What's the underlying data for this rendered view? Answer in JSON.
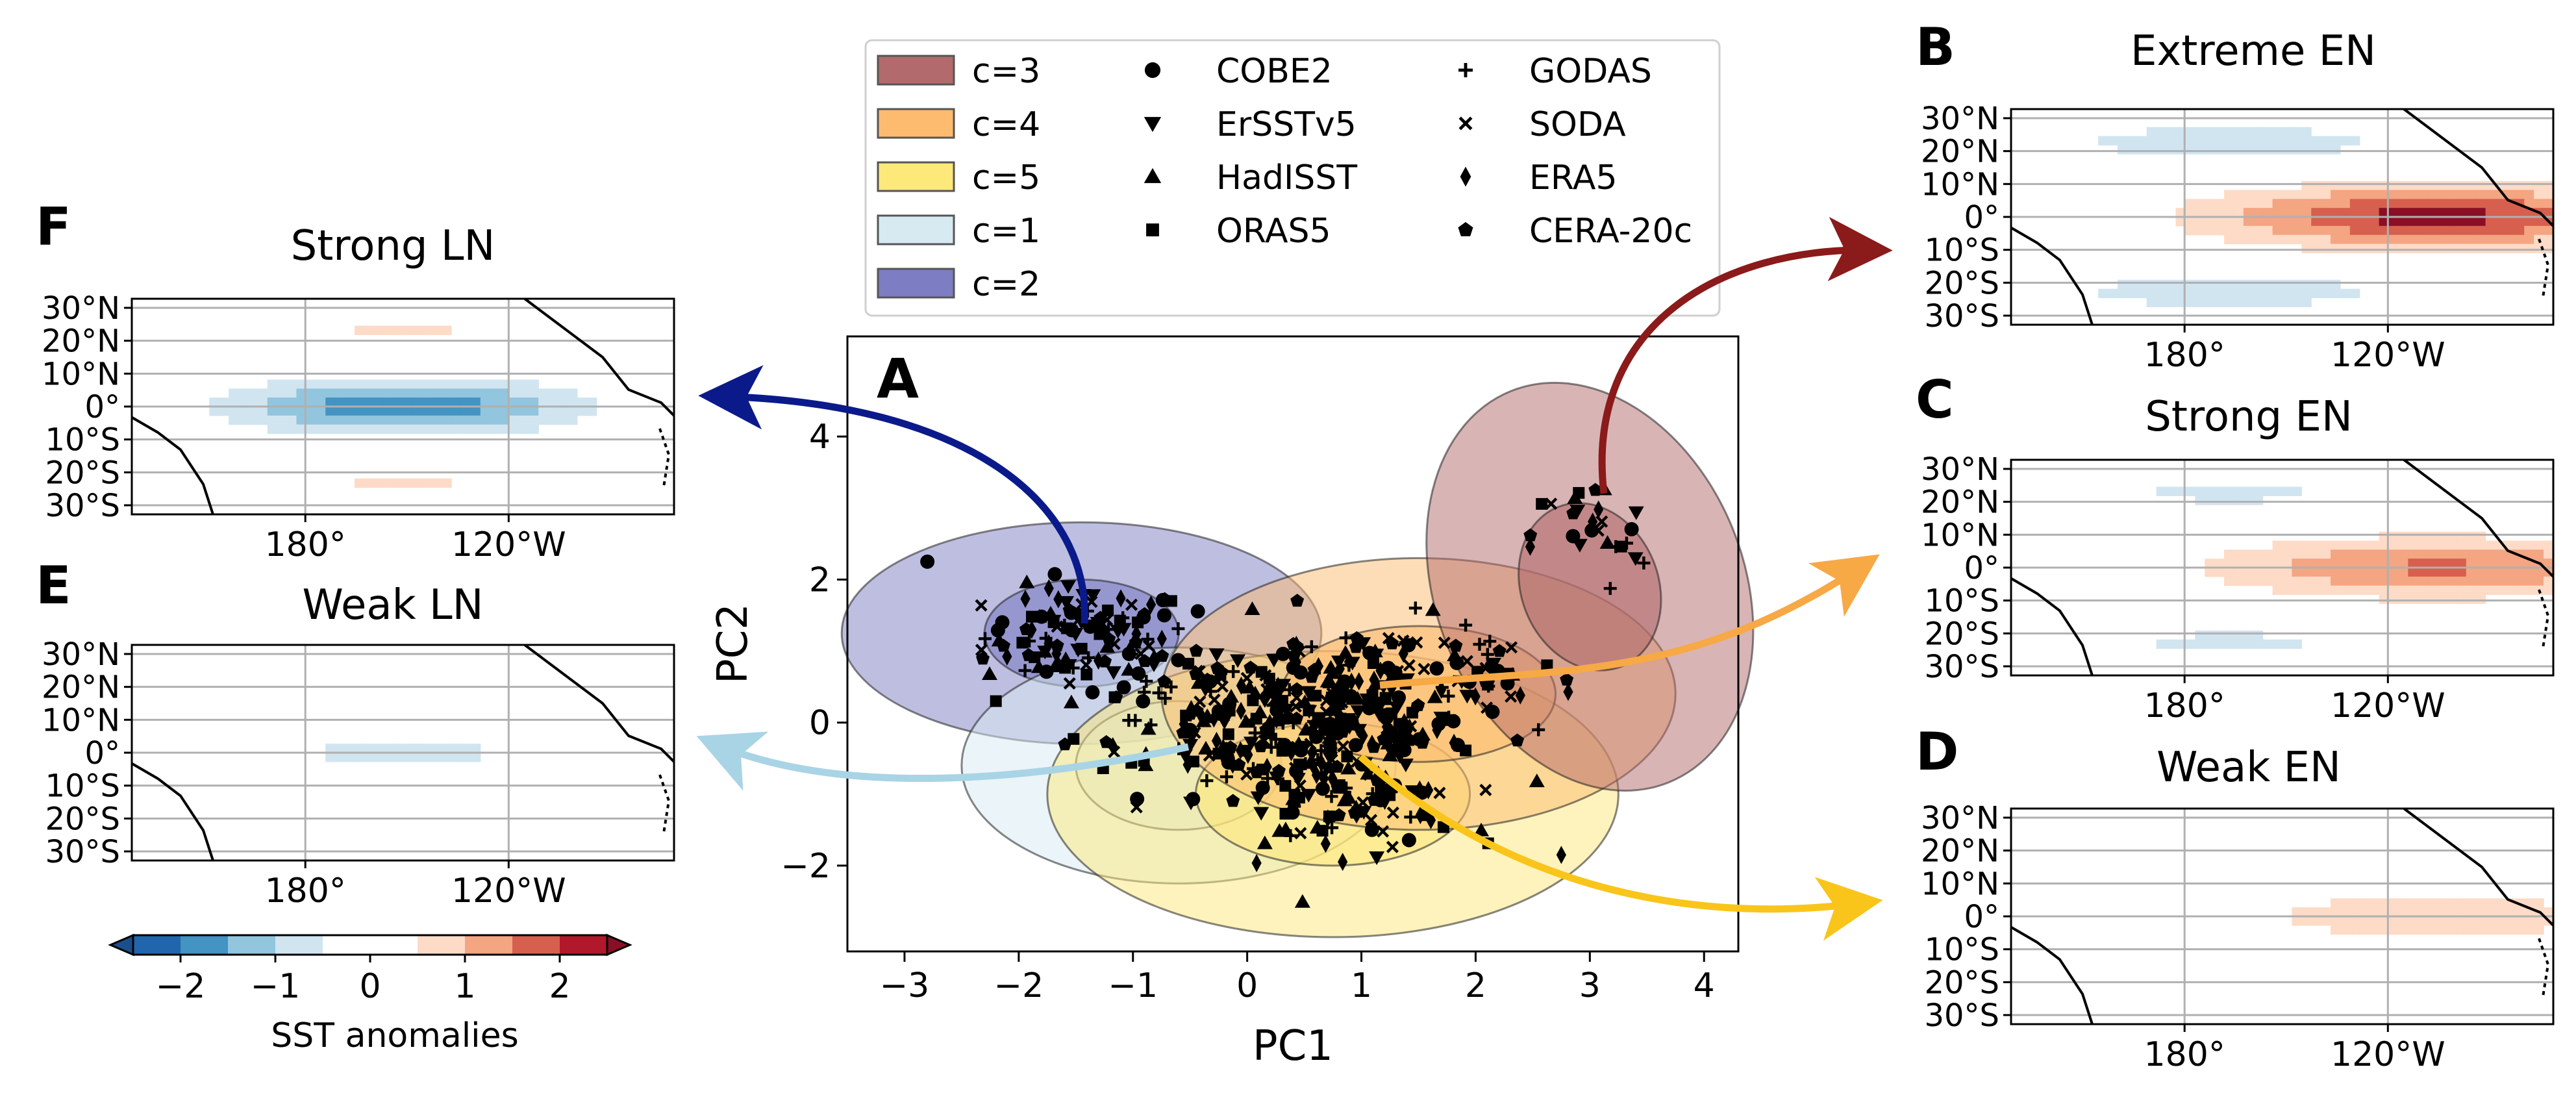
{
  "main_plot": {
    "panel_label": "A",
    "xlabel": "PC1",
    "ylabel": "PC2",
    "xticks": [
      "−3",
      "−2",
      "−1",
      "0",
      "1",
      "2",
      "3",
      "4"
    ],
    "yticks": [
      "−2",
      "0",
      "2",
      "4"
    ]
  },
  "legend": {
    "clusters": [
      {
        "label": "c=3",
        "color": "#b36a6c"
      },
      {
        "label": "c=4",
        "color": "#fcbb6f"
      },
      {
        "label": "c=5",
        "color": "#fde87a"
      },
      {
        "label": "c=1",
        "color": "#d7e9f1"
      },
      {
        "label": "c=2",
        "color": "#7d7dc3"
      }
    ],
    "datasets": [
      {
        "label": "COBE2",
        "marker": "circle"
      },
      {
        "label": "ErSSTv5",
        "marker": "triangle-down"
      },
      {
        "label": "HadISST",
        "marker": "triangle-up"
      },
      {
        "label": "ORAS5",
        "marker": "square"
      },
      {
        "label": "GODAS",
        "marker": "plus"
      },
      {
        "label": "SODA",
        "marker": "x"
      },
      {
        "label": "ERA5",
        "marker": "thin-diamond"
      },
      {
        "label": "CERA-20c",
        "marker": "pentagon"
      }
    ]
  },
  "maps": {
    "lat_ticks": [
      "30°N",
      "20°N",
      "10°N",
      "0°",
      "10°S",
      "20°S",
      "30°S"
    ],
    "lon_ticks": [
      "180°",
      "120°W"
    ],
    "panels": [
      {
        "label": "B",
        "title": "Extreme EN"
      },
      {
        "label": "C",
        "title": "Strong EN"
      },
      {
        "label": "D",
        "title": "Weak EN"
      },
      {
        "label": "E",
        "title": "Weak LN"
      },
      {
        "label": "F",
        "title": "Strong LN"
      }
    ]
  },
  "colorbar": {
    "label": "SST anomalies",
    "ticks": [
      "−2",
      "−1",
      "0",
      "1",
      "2"
    ],
    "colors": [
      "#2166ac",
      "#4393c3",
      "#92c5de",
      "#d1e5f0",
      "#ffffff",
      "#ffffff",
      "#fddbc7",
      "#f4a582",
      "#d6604d",
      "#b2182b"
    ],
    "under": "#1a4f8c",
    "over": "#8a0f24"
  },
  "chart_data": {
    "type": "scatter",
    "xlabel": "PC1",
    "ylabel": "PC2",
    "xlim": [
      -3.5,
      4.3
    ],
    "ylim": [
      -3.2,
      5.4
    ],
    "grid": false,
    "legend_position": "top-center, outside",
    "cluster_ellipses": [
      {
        "cluster": "c=3",
        "center": [
          3.0,
          1.9
        ],
        "inner_radii": [
          0.6,
          1.2
        ],
        "outer_radii": [
          1.35,
          2.95
        ],
        "rotation_deg": 22
      },
      {
        "cluster": "c=4",
        "center": [
          1.5,
          0.4
        ],
        "inner_radii": [
          1.2,
          0.95
        ],
        "outer_radii": [
          2.25,
          1.9
        ],
        "rotation_deg": 0
      },
      {
        "cluster": "c=5",
        "center": [
          0.75,
          -1.0
        ],
        "inner_radii": [
          1.2,
          1.0
        ],
        "outer_radii": [
          2.5,
          2.0
        ],
        "rotation_deg": 0
      },
      {
        "cluster": "c=1",
        "center": [
          -0.6,
          -0.6
        ],
        "inner_radii": [
          0.9,
          0.9
        ],
        "outer_radii": [
          1.9,
          1.65
        ],
        "rotation_deg": 0
      },
      {
        "cluster": "c=2",
        "center": [
          -1.45,
          1.25
        ],
        "inner_radii": [
          0.85,
          0.75
        ],
        "outer_radii": [
          2.1,
          1.55
        ],
        "rotation_deg": 0
      }
    ],
    "points_note": "Monthly PC1/PC2 states from 8 datasets; dense cloud centered near (0.3, 0), spanning PC1 -3 to 3.6 and PC2 -2 to 3"
  }
}
